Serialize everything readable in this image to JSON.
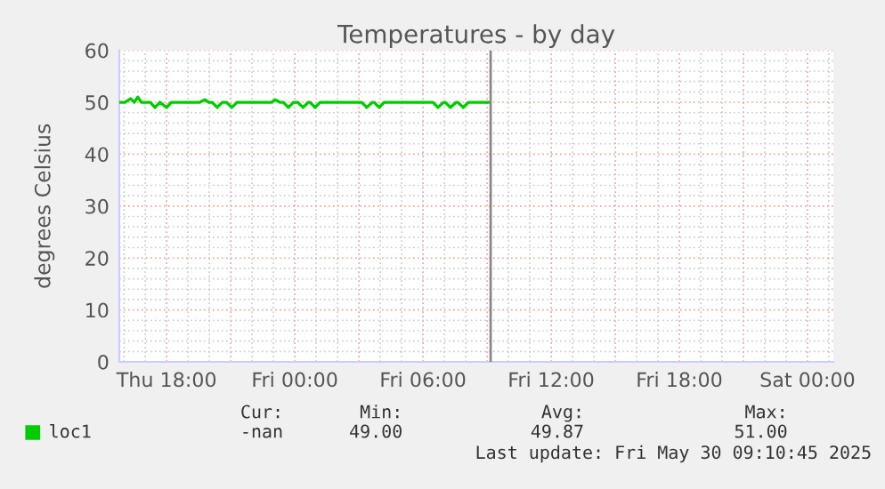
{
  "chart_data": {
    "type": "line",
    "title": "Temperatures - by day",
    "ylabel": "degrees Celsius",
    "x": [
      "2025-05-29T15:47",
      "2025-05-29T16:03",
      "2025-05-29T16:19",
      "2025-05-29T16:29",
      "2025-05-29T16:39",
      "2025-05-29T16:49",
      "2025-05-29T17:14",
      "2025-05-29T17:27",
      "2025-05-29T17:41",
      "2025-05-29T18:00",
      "2025-05-29T18:13",
      "2025-05-29T19:33",
      "2025-05-29T19:48",
      "2025-05-29T19:58",
      "2025-05-29T20:08",
      "2025-05-29T20:22",
      "2025-05-29T20:36",
      "2025-05-29T20:48",
      "2025-05-29T21:03",
      "2025-05-29T21:18",
      "2025-05-29T22:54",
      "2025-05-29T23:05",
      "2025-05-29T23:18",
      "2025-05-29T23:28",
      "2025-05-29T23:42",
      "2025-05-29T23:56",
      "2025-05-30T00:08",
      "2025-05-30T00:23",
      "2025-05-30T00:38",
      "2025-05-30T00:43",
      "2025-05-30T00:57",
      "2025-05-30T01:11",
      "2025-05-30T03:08",
      "2025-05-30T03:22",
      "2025-05-30T03:38",
      "2025-05-30T03:43",
      "2025-05-30T03:57",
      "2025-05-30T04:11",
      "2025-05-30T06:28",
      "2025-05-30T06:42",
      "2025-05-30T06:58",
      "2025-05-30T07:03",
      "2025-05-30T07:17",
      "2025-05-30T07:33",
      "2025-05-30T07:38",
      "2025-05-30T07:53",
      "2025-05-30T08:08",
      "2025-05-30T09:08"
    ],
    "series": [
      {
        "name": "loc1",
        "color": "#00cc00",
        "values": [
          50,
          50,
          50.7,
          50,
          51,
          50,
          50,
          49,
          50,
          49,
          50,
          50,
          50.5,
          50,
          50,
          49,
          50,
          50,
          49,
          50,
          50,
          50.5,
          50,
          50,
          49,
          50,
          50,
          49,
          50,
          50,
          49,
          50,
          50,
          49,
          50,
          50,
          49,
          50,
          50,
          49,
          50,
          50,
          49,
          50,
          50,
          49,
          50,
          50
        ]
      }
    ],
    "xlim": [
      "2025-05-29T15:47",
      "2025-05-31T01:13"
    ],
    "xticks": [
      {
        "value": "2025-05-29T18:00",
        "label": "Thu 18:00"
      },
      {
        "value": "2025-05-29T21:00",
        "label": null
      },
      {
        "value": "2025-05-30T00:00",
        "label": "Fri 00:00"
      },
      {
        "value": "2025-05-30T03:00",
        "label": null
      },
      {
        "value": "2025-05-30T06:00",
        "label": "Fri 06:00"
      },
      {
        "value": "2025-05-30T09:00",
        "label": null
      },
      {
        "value": "2025-05-30T12:00",
        "label": "Fri 12:00"
      },
      {
        "value": "2025-05-30T15:00",
        "label": null
      },
      {
        "value": "2025-05-30T18:00",
        "label": "Fri 18:00"
      },
      {
        "value": "2025-05-30T21:00",
        "label": null
      },
      {
        "value": "2025-05-31T00:00",
        "label": "Sat 00:00"
      }
    ],
    "ylim": [
      0,
      60
    ],
    "yticks": [
      0,
      10,
      20,
      30,
      40,
      50,
      60
    ],
    "grid": true,
    "legend": "bottom left",
    "marker": "none",
    "line_style": "solid",
    "ref_lines": [
      {
        "axis": "x",
        "value": "2025-05-30T09:10",
        "color": "#888888"
      }
    ],
    "annotations": [
      "Cur:",
      "Min:",
      "Avg:",
      "Max:",
      "-nan",
      "49.00",
      "49.87",
      "51.00",
      "Last update: Fri May 30 09:10:45 2025"
    ]
  }
}
